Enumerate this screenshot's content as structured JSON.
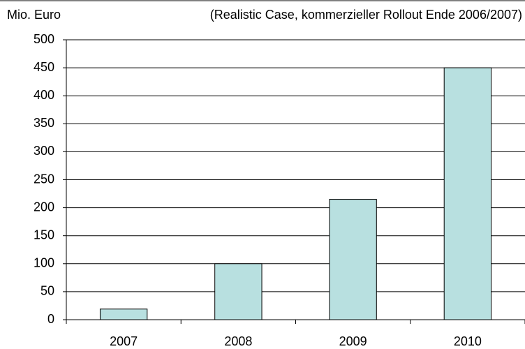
{
  "chart_data": {
    "type": "bar",
    "y_label": "Mio. Euro",
    "subtitle": "(Realistic Case, kommerzieller Rollout Ende 2006/2007)",
    "categories": [
      "2007",
      "2008",
      "2009",
      "2010"
    ],
    "values": [
      19,
      100,
      215,
      450
    ],
    "color": "#b8e0e0",
    "ylim": [
      0,
      500
    ],
    "yticks": [
      0,
      50,
      100,
      150,
      200,
      250,
      300,
      350,
      400,
      450,
      500
    ],
    "grid": true
  }
}
